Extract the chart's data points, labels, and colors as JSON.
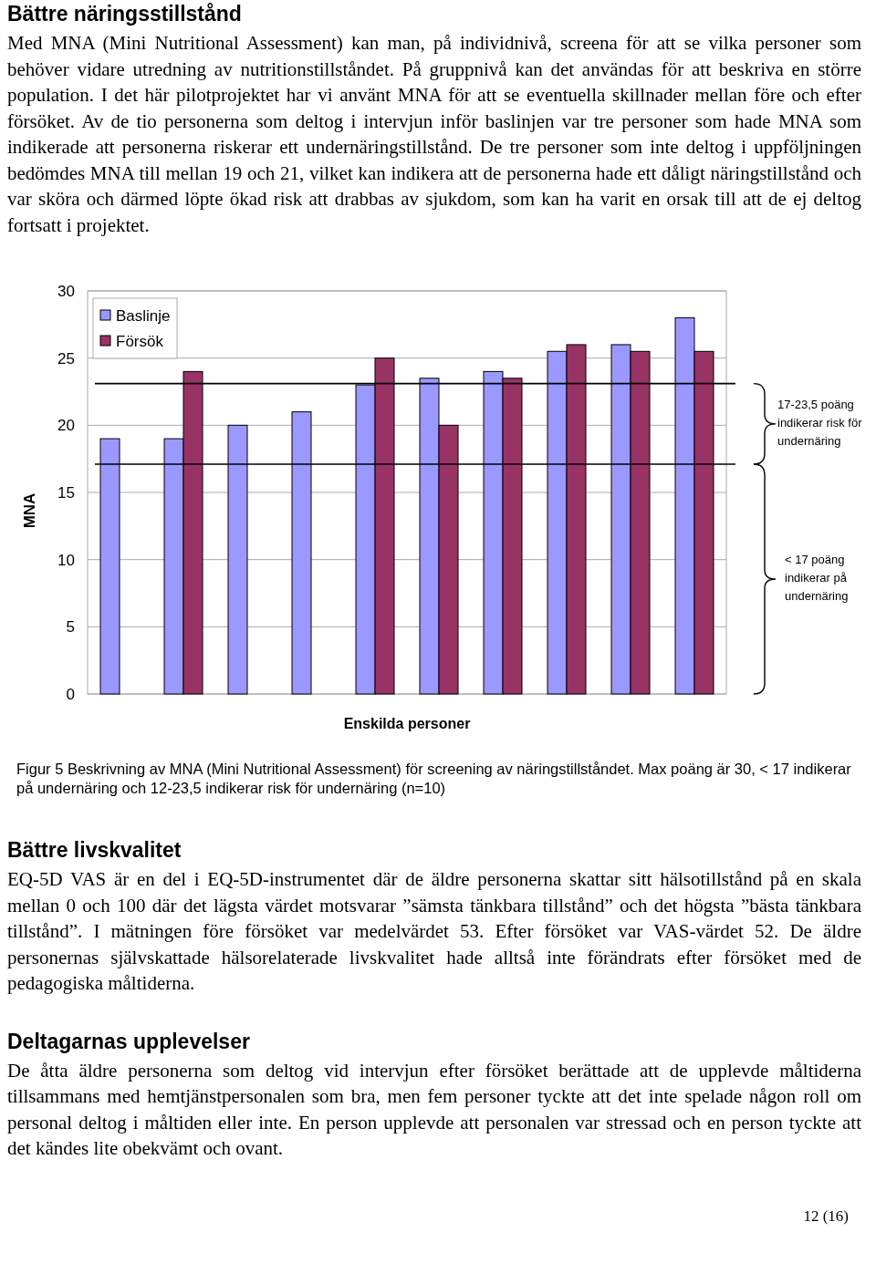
{
  "chart_data": {
    "type": "bar",
    "title": "Bättre näringsstillstånd",
    "subtitle": "Med MNA (Mini Nutritional Assessment) kan man, på individnivå, screena för att se vilka personer som behöver vidare utredning av nutritionstillståndet. På gruppnivå kan det användas för att beskriva en större population. I det här pilotprojektet har vi använt MNA för att se eventuella skillnader mellan före och efter försöket. Av de tio personerna som deltog i intervjun inför baslinjen var tre personer som hade MNA som indikerade att personerna riskerar ett undernäringstillstånd. De tre personer som inte deltog i uppföljningen bedömdes MNA till mellan 19 och 21, vilket kan indikera att de personerna hade ett dåligt näringstillstånd och var sköra och därmed löpte ökad risk att drabbas av sjukdom, som kan ha varit en orsak till att de ej deltog fortsatt i projektet.",
    "xlabel": "Enskilda personer",
    "ylabel": "MNA",
    "categories": [
      null,
      null,
      null,
      null,
      null,
      null,
      null,
      null,
      null,
      null
    ],
    "series": [
      {
        "name": "Baslinje",
        "color": "#9999ff",
        "values": [
          19,
          19,
          20,
          21,
          23,
          23.5,
          24,
          25.5,
          26,
          28
        ]
      },
      {
        "name": "Försök",
        "color": "#993366",
        "values": [
          null,
          24,
          null,
          null,
          25,
          20,
          23.5,
          26,
          25.5,
          25.5
        ]
      }
    ],
    "ylim": [
      0,
      30
    ],
    "yticks": [
      0,
      5,
      10,
      15,
      20,
      25,
      30
    ],
    "grid": "y",
    "legend": "top left",
    "ref_lines": [
      {
        "axis": "y",
        "value": 23.1,
        "color": "#000000"
      },
      {
        "axis": "y",
        "value": 17.1,
        "color": "#000000"
      }
    ],
    "annotations": [
      "17-23,5 poäng indikerar risk för undernäring",
      "< 17 poäng indikerar på undernäring",
      "Figur 5 Beskrivning av MNA (Mini Nutritional Assessment) för screening av näringstillståndet. Max poäng är 30, < 17 indikerar på undernäring och 12-23,5 indikerar risk för undernäring (n=10)",
      "Bättre livskvalitet",
      "EQ-5D VAS är en del i EQ-5D-instrumentet där de äldre personerna skattar sitt hälsotillstånd på en skala mellan 0 och 100 där det lägsta värdet motsvarar ”sämsta tänkbara tillstånd” och det högsta ”bästa tänkbara tillstånd”. I mätningen före försöket var medelvärdet 53. Efter försöket var VAS-värdet 52. De äldre personernas självskattade hälsorelaterade livskvalitet hade alltså inte förändrats efter försöket med de pedagogiska måltiderna.",
      "Deltagarnas upplevelser",
      "De åtta äldre personerna som deltog vid intervjun efter försöket berättade att de upplevde måltiderna tillsammans med hemtjänstpersonalen som bra, men fem personer tyckte att det inte spelade någon roll om personal deltog i måltiden eller inte. En person upplevde att personalen var stressad och en person tyckte att det kändes lite obekvämt och ovant.",
      "12 (16)"
    ]
  }
}
